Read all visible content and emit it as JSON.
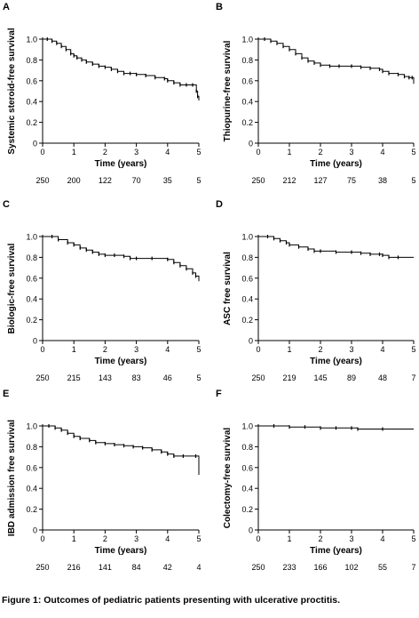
{
  "caption": "Figure 1: Outcomes of pediatric patients presenting with ulcerative proctitis.",
  "chart_data": [
    {
      "panel": "A",
      "type": "line",
      "ylabel": "Systemic steroid-free survival",
      "xlabel": "Time (years)",
      "xlim": [
        0,
        5
      ],
      "ylim": [
        0,
        1.0
      ],
      "xticks": [
        "0",
        "1",
        "2",
        "3",
        "4",
        "5"
      ],
      "yticks": [
        "0",
        "0.2",
        "0.4",
        "0.6",
        "0.8",
        "1.0"
      ],
      "at_risk_x": [
        0,
        1,
        2,
        3,
        4,
        5
      ],
      "at_risk": [
        "250",
        "200",
        "122",
        "70",
        "35",
        "5"
      ],
      "points": [
        [
          0,
          1.0
        ],
        [
          0.15,
          1.0
        ],
        [
          0.3,
          0.98
        ],
        [
          0.45,
          0.96
        ],
        [
          0.6,
          0.93
        ],
        [
          0.75,
          0.9
        ],
        [
          0.9,
          0.86
        ],
        [
          1.0,
          0.84
        ],
        [
          1.1,
          0.82
        ],
        [
          1.25,
          0.8
        ],
        [
          1.4,
          0.78
        ],
        [
          1.6,
          0.76
        ],
        [
          1.8,
          0.74
        ],
        [
          2.0,
          0.73
        ],
        [
          2.2,
          0.71
        ],
        [
          2.4,
          0.69
        ],
        [
          2.6,
          0.67
        ],
        [
          2.8,
          0.67
        ],
        [
          3.0,
          0.66
        ],
        [
          3.3,
          0.65
        ],
        [
          3.6,
          0.63
        ],
        [
          3.9,
          0.62
        ],
        [
          4.0,
          0.6
        ],
        [
          4.2,
          0.58
        ],
        [
          4.4,
          0.56
        ],
        [
          4.6,
          0.56
        ],
        [
          4.8,
          0.56
        ],
        [
          4.92,
          0.5
        ],
        [
          4.96,
          0.45
        ],
        [
          5.0,
          0.41
        ]
      ]
    },
    {
      "panel": "B",
      "type": "line",
      "ylabel": "Thiopurine-free survival",
      "xlabel": "Time (years)",
      "xlim": [
        0,
        5
      ],
      "ylim": [
        0,
        1.0
      ],
      "xticks": [
        "0",
        "1",
        "2",
        "3",
        "4",
        "5"
      ],
      "yticks": [
        "0",
        "0.2",
        "0.4",
        "0.6",
        "0.8",
        "1.0"
      ],
      "at_risk_x": [
        0,
        1,
        2,
        3,
        4,
        5
      ],
      "at_risk": [
        "250",
        "212",
        "127",
        "75",
        "38",
        "5"
      ],
      "points": [
        [
          0,
          1.0
        ],
        [
          0.2,
          1.0
        ],
        [
          0.4,
          0.98
        ],
        [
          0.6,
          0.96
        ],
        [
          0.8,
          0.93
        ],
        [
          1.0,
          0.9
        ],
        [
          1.2,
          0.86
        ],
        [
          1.4,
          0.82
        ],
        [
          1.6,
          0.79
        ],
        [
          1.8,
          0.77
        ],
        [
          2.0,
          0.75
        ],
        [
          2.3,
          0.74
        ],
        [
          2.6,
          0.74
        ],
        [
          3.0,
          0.74
        ],
        [
          3.3,
          0.73
        ],
        [
          3.6,
          0.72
        ],
        [
          3.9,
          0.71
        ],
        [
          4.0,
          0.69
        ],
        [
          4.2,
          0.67
        ],
        [
          4.5,
          0.66
        ],
        [
          4.7,
          0.64
        ],
        [
          4.85,
          0.63
        ],
        [
          4.95,
          0.63
        ],
        [
          5.0,
          0.57
        ]
      ]
    },
    {
      "panel": "C",
      "type": "line",
      "ylabel": "Biologic-free survival",
      "xlabel": "Time (years)",
      "xlim": [
        0,
        5
      ],
      "ylim": [
        0,
        1.0
      ],
      "xticks": [
        "0",
        "1",
        "2",
        "3",
        "4",
        "5"
      ],
      "yticks": [
        "0",
        "0.2",
        "0.4",
        "0.6",
        "0.8",
        "1.0"
      ],
      "at_risk_x": [
        0,
        1,
        2,
        3,
        4,
        5
      ],
      "at_risk": [
        "250",
        "215",
        "143",
        "83",
        "46",
        "5"
      ],
      "points": [
        [
          0,
          1.0
        ],
        [
          0.3,
          1.0
        ],
        [
          0.5,
          0.97
        ],
        [
          0.8,
          0.94
        ],
        [
          1.0,
          0.92
        ],
        [
          1.2,
          0.89
        ],
        [
          1.4,
          0.87
        ],
        [
          1.6,
          0.85
        ],
        [
          1.8,
          0.83
        ],
        [
          2.0,
          0.82
        ],
        [
          2.3,
          0.82
        ],
        [
          2.6,
          0.81
        ],
        [
          2.8,
          0.79
        ],
        [
          3.0,
          0.79
        ],
        [
          3.5,
          0.79
        ],
        [
          4.0,
          0.78
        ],
        [
          4.2,
          0.75
        ],
        [
          4.4,
          0.72
        ],
        [
          4.6,
          0.69
        ],
        [
          4.8,
          0.65
        ],
        [
          4.9,
          0.62
        ],
        [
          5.0,
          0.57
        ]
      ]
    },
    {
      "panel": "D",
      "type": "line",
      "ylabel": "ASC free survival",
      "xlabel": "Time (years)",
      "xlim": [
        0,
        5
      ],
      "ylim": [
        0,
        1.0
      ],
      "xticks": [
        "0",
        "1",
        "2",
        "3",
        "4",
        "5"
      ],
      "yticks": [
        "0",
        "0.2",
        "0.4",
        "0.6",
        "0.8",
        "1.0"
      ],
      "at_risk_x": [
        0,
        1,
        2,
        3,
        4,
        5
      ],
      "at_risk": [
        "250",
        "219",
        "145",
        "89",
        "48",
        "7"
      ],
      "points": [
        [
          0,
          1.0
        ],
        [
          0.3,
          1.0
        ],
        [
          0.5,
          0.98
        ],
        [
          0.7,
          0.96
        ],
        [
          0.9,
          0.94
        ],
        [
          1.0,
          0.92
        ],
        [
          1.3,
          0.9
        ],
        [
          1.6,
          0.88
        ],
        [
          1.8,
          0.86
        ],
        [
          2.0,
          0.86
        ],
        [
          2.5,
          0.85
        ],
        [
          3.0,
          0.85
        ],
        [
          3.3,
          0.84
        ],
        [
          3.6,
          0.83
        ],
        [
          3.9,
          0.83
        ],
        [
          4.0,
          0.82
        ],
        [
          4.2,
          0.8
        ],
        [
          4.5,
          0.8
        ],
        [
          5.0,
          0.8
        ]
      ]
    },
    {
      "panel": "E",
      "type": "line",
      "ylabel": "IBD admission free survival",
      "xlabel": "Time (years)",
      "xlim": [
        0,
        5
      ],
      "ylim": [
        0,
        1.0
      ],
      "xticks": [
        "0",
        "1",
        "2",
        "3",
        "4",
        "5"
      ],
      "yticks": [
        "0",
        "0.2",
        "0.4",
        "0.6",
        "0.8",
        "1.0"
      ],
      "at_risk_x": [
        0,
        1,
        2,
        3,
        4,
        5
      ],
      "at_risk": [
        "250",
        "216",
        "141",
        "84",
        "42",
        "4"
      ],
      "points": [
        [
          0,
          1.0
        ],
        [
          0.2,
          1.0
        ],
        [
          0.4,
          0.98
        ],
        [
          0.6,
          0.96
        ],
        [
          0.8,
          0.93
        ],
        [
          1.0,
          0.9
        ],
        [
          1.2,
          0.88
        ],
        [
          1.5,
          0.86
        ],
        [
          1.7,
          0.84
        ],
        [
          2.0,
          0.83
        ],
        [
          2.3,
          0.82
        ],
        [
          2.6,
          0.81
        ],
        [
          2.9,
          0.8
        ],
        [
          3.2,
          0.79
        ],
        [
          3.5,
          0.77
        ],
        [
          3.8,
          0.75
        ],
        [
          4.0,
          0.73
        ],
        [
          4.2,
          0.71
        ],
        [
          4.5,
          0.71
        ],
        [
          4.9,
          0.71
        ],
        [
          5.0,
          0.53
        ]
      ]
    },
    {
      "panel": "F",
      "type": "line",
      "ylabel": "Colectomy-free survival",
      "xlabel": "Time (years)",
      "xlim": [
        0,
        5
      ],
      "ylim": [
        0,
        1.0
      ],
      "xticks": [
        "0",
        "1",
        "2",
        "3",
        "4",
        "5"
      ],
      "yticks": [
        "0",
        "0.2",
        "0.4",
        "0.6",
        "0.8",
        "1.0"
      ],
      "at_risk_x": [
        0,
        1,
        2,
        3,
        4,
        5
      ],
      "at_risk": [
        "250",
        "233",
        "166",
        "102",
        "55",
        "7"
      ],
      "points": [
        [
          0,
          1.0
        ],
        [
          0.5,
          1.0
        ],
        [
          1.0,
          0.99
        ],
        [
          1.5,
          0.99
        ],
        [
          2.0,
          0.98
        ],
        [
          2.5,
          0.98
        ],
        [
          3.0,
          0.98
        ],
        [
          3.2,
          0.97
        ],
        [
          4.0,
          0.97
        ],
        [
          5.0,
          0.97
        ]
      ]
    }
  ]
}
